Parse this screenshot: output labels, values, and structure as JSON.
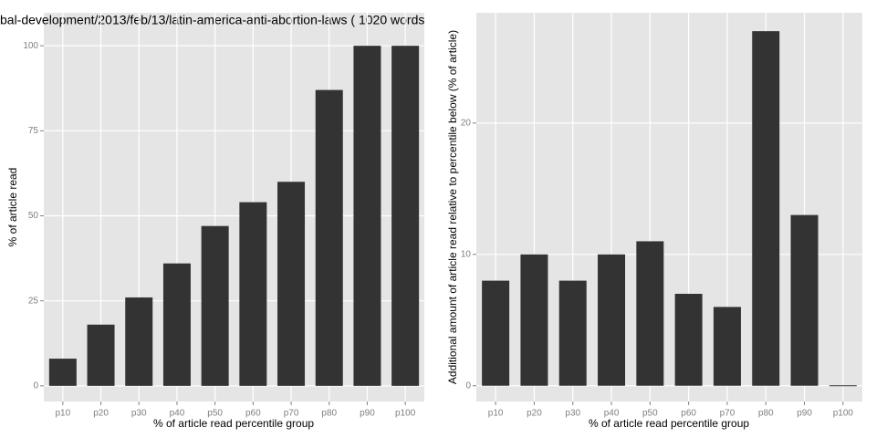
{
  "chart_data": [
    {
      "type": "bar",
      "title": "bal-development/2013/feb/13/latin-america-anti-abortion-laws ( 1020 words",
      "x_label": "% of article read percentile group",
      "y_label": "% of article read",
      "categories": [
        "p10",
        "p20",
        "p30",
        "p40",
        "p50",
        "p60",
        "p70",
        "p80",
        "p90",
        "p100"
      ],
      "values": [
        8,
        18,
        26,
        36,
        47,
        54,
        60,
        87,
        100,
        100
      ],
      "color": "#333333",
      "ylim": [
        -4.6,
        109.7
      ],
      "yticks": [
        0,
        25,
        50,
        75,
        100
      ],
      "grid": true
    },
    {
      "type": "bar",
      "x_label": "% of article read percentile group",
      "y_label": "Additional amount of article read relative to percentile below (% of article)",
      "categories": [
        "p10",
        "p20",
        "p30",
        "p40",
        "p50",
        "p60",
        "p70",
        "p80",
        "p90",
        "p100"
      ],
      "values": [
        8,
        10,
        8,
        10,
        11,
        7,
        6,
        27,
        13,
        0
      ],
      "color": "#333333",
      "ylim": [
        -1.2,
        28.4
      ],
      "yticks": [
        0,
        10,
        20
      ],
      "grid": true
    }
  ]
}
